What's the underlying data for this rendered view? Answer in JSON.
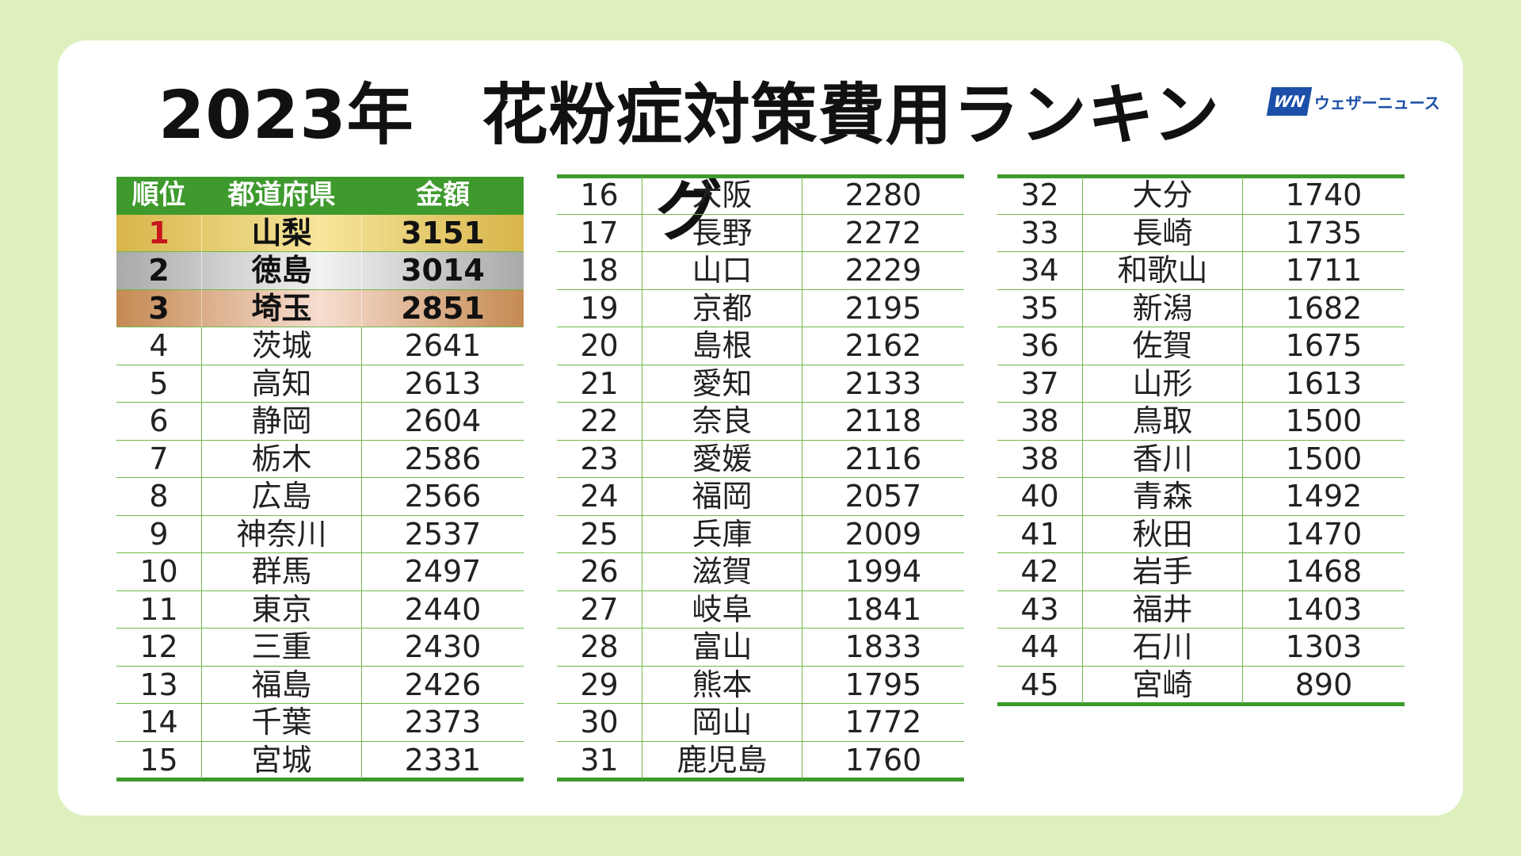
{
  "title": "2023年　花粉症対策費用ランキング",
  "logo": {
    "mark": "WN",
    "text": "ウェザーニュース"
  },
  "table": {
    "header": [
      "順位",
      "都道府県",
      "金額"
    ],
    "rows": [
      [
        1,
        "山梨",
        3151
      ],
      [
        2,
        "徳島",
        3014
      ],
      [
        3,
        "埼玉",
        2851
      ],
      [
        4,
        "茨城",
        2641
      ],
      [
        5,
        "高知",
        2613
      ],
      [
        6,
        "静岡",
        2604
      ],
      [
        7,
        "栃木",
        2586
      ],
      [
        8,
        "広島",
        2566
      ],
      [
        9,
        "神奈川",
        2537
      ],
      [
        10,
        "群馬",
        2497
      ],
      [
        11,
        "東京",
        2440
      ],
      [
        12,
        "三重",
        2430
      ],
      [
        13,
        "福島",
        2426
      ],
      [
        14,
        "千葉",
        2373
      ],
      [
        15,
        "宮城",
        2331
      ],
      [
        16,
        "大阪",
        2280
      ],
      [
        17,
        "長野",
        2272
      ],
      [
        18,
        "山口",
        2229
      ],
      [
        19,
        "京都",
        2195
      ],
      [
        20,
        "島根",
        2162
      ],
      [
        21,
        "愛知",
        2133
      ],
      [
        22,
        "奈良",
        2118
      ],
      [
        23,
        "愛媛",
        2116
      ],
      [
        24,
        "福岡",
        2057
      ],
      [
        25,
        "兵庫",
        2009
      ],
      [
        26,
        "滋賀",
        1994
      ],
      [
        27,
        "岐阜",
        1841
      ],
      [
        28,
        "富山",
        1833
      ],
      [
        29,
        "熊本",
        1795
      ],
      [
        30,
        "岡山",
        1772
      ],
      [
        31,
        "鹿児島",
        1760
      ],
      [
        32,
        "大分",
        1740
      ],
      [
        33,
        "長崎",
        1735
      ],
      [
        34,
        "和歌山",
        1711
      ],
      [
        35,
        "新潟",
        1682
      ],
      [
        36,
        "佐賀",
        1675
      ],
      [
        37,
        "山形",
        1613
      ],
      [
        38,
        "鳥取",
        1500
      ],
      [
        38,
        "香川",
        1500
      ],
      [
        40,
        "青森",
        1492
      ],
      [
        41,
        "秋田",
        1470
      ],
      [
        42,
        "岩手",
        1468
      ],
      [
        43,
        "福井",
        1403
      ],
      [
        44,
        "石川",
        1303
      ],
      [
        45,
        "宮崎",
        890
      ]
    ]
  }
}
